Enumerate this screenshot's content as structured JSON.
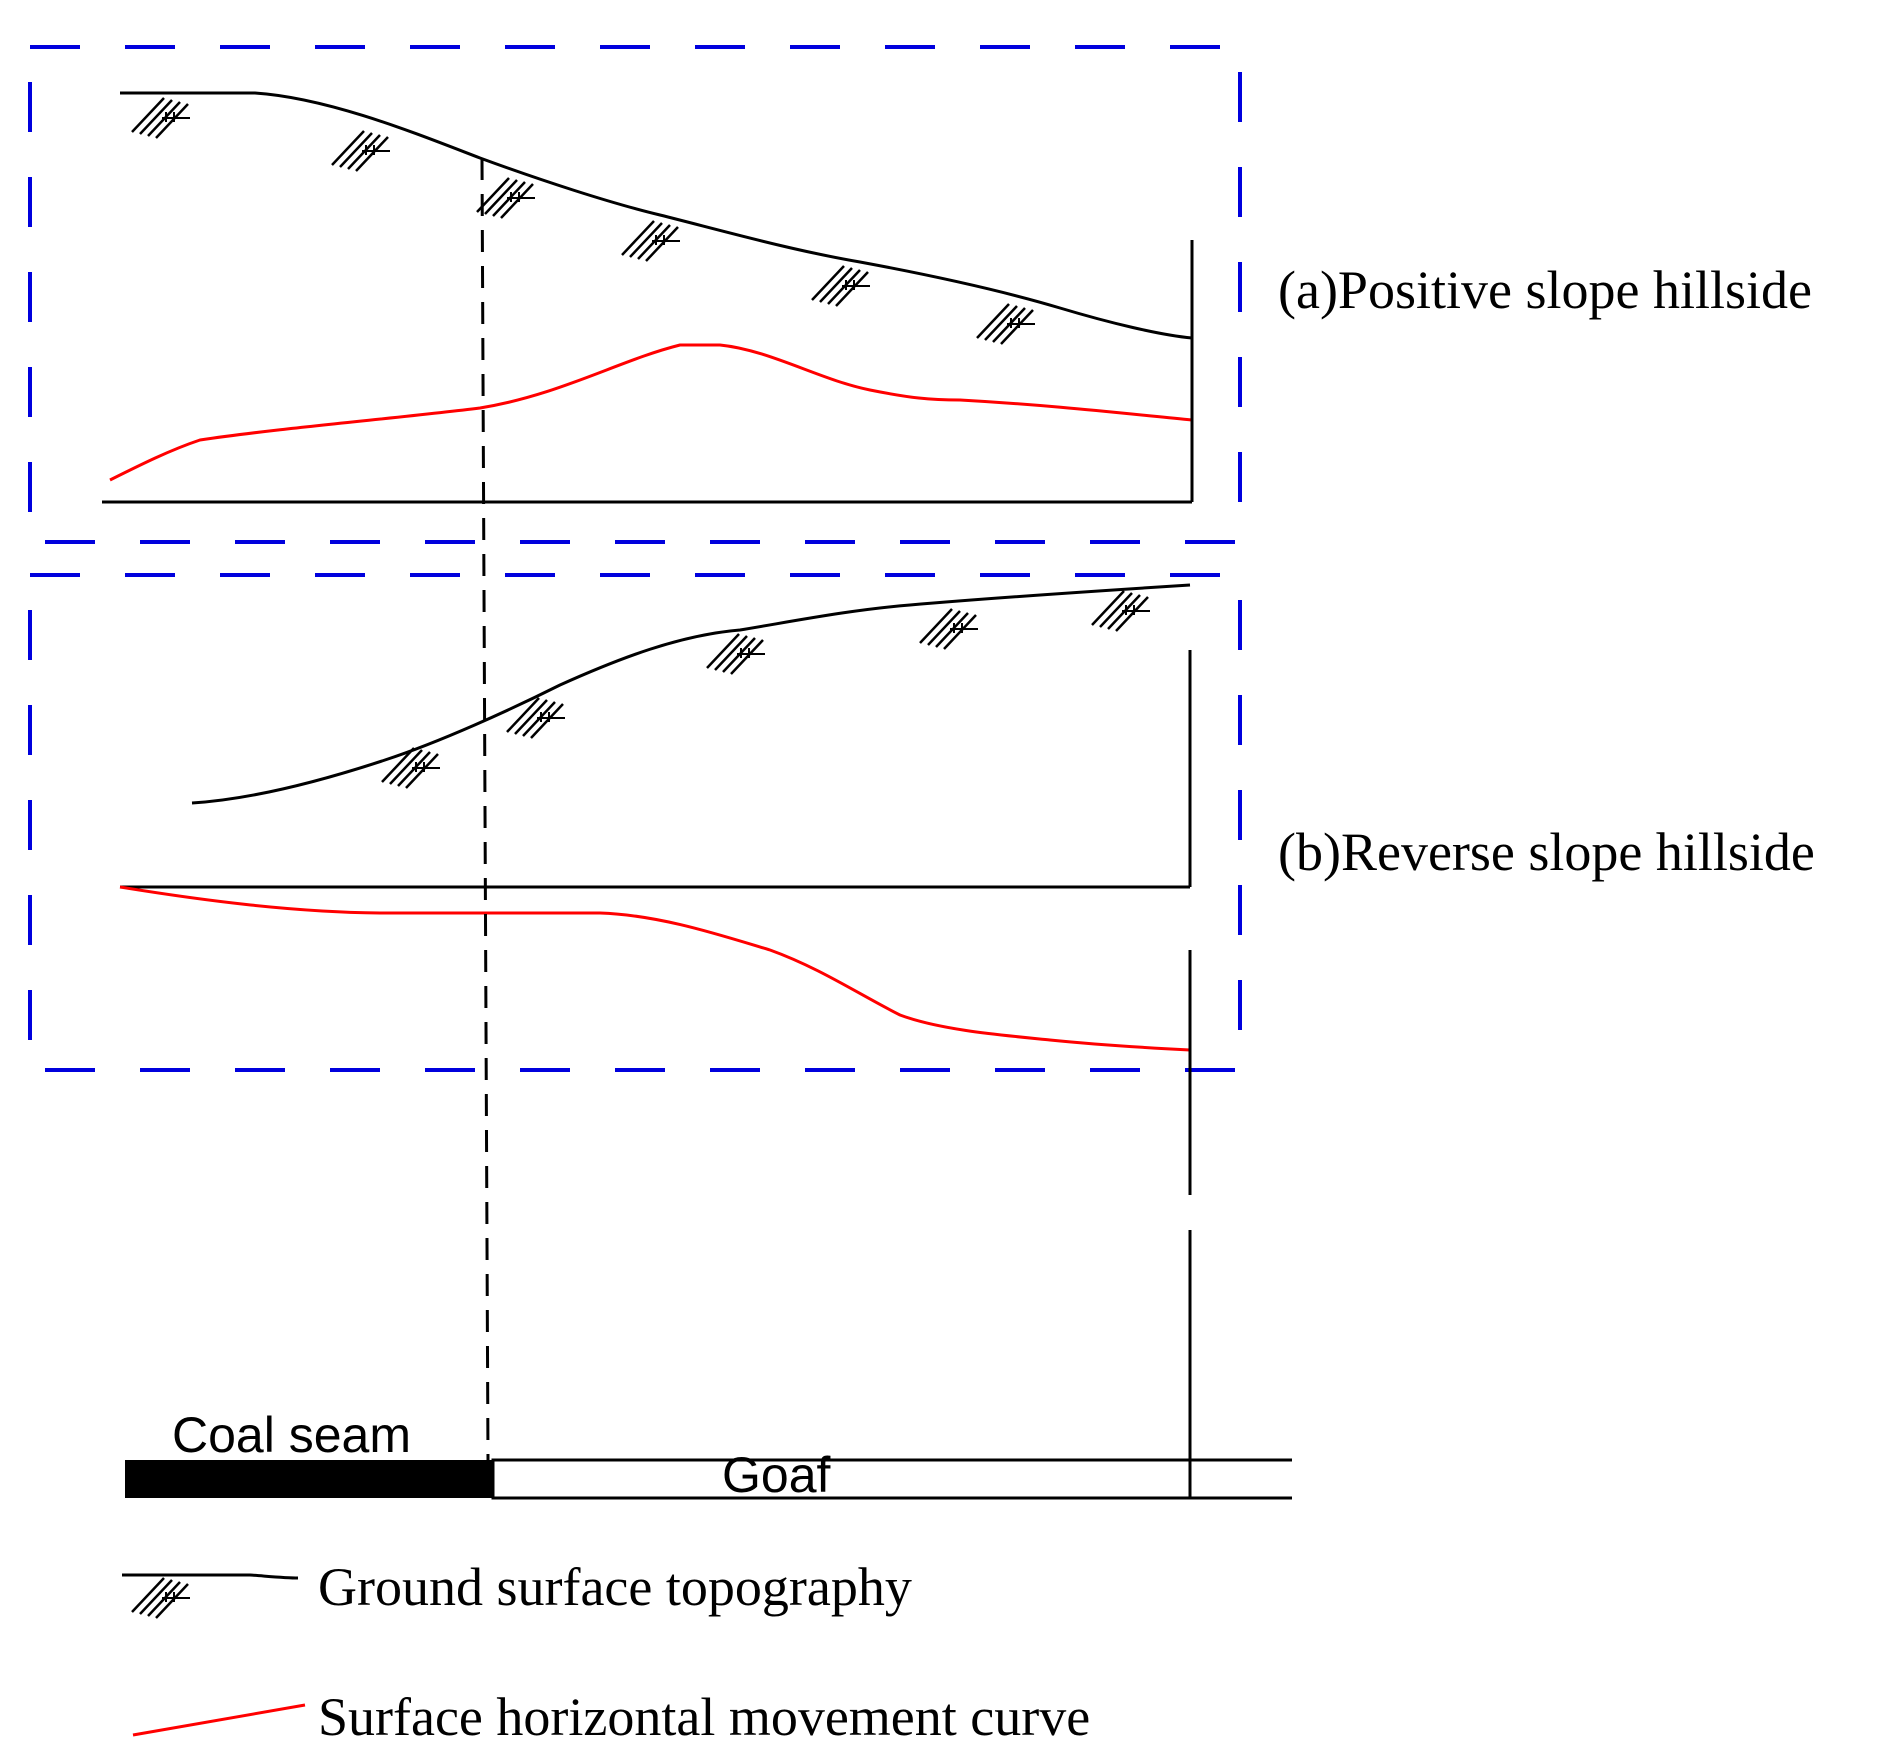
{
  "panels": {
    "a": {
      "label": "(a)Positive slope hillside"
    },
    "b": {
      "label": "(b)Reverse slope hillside"
    }
  },
  "strata": {
    "coal_seam_label": "Coal seam",
    "goaf_label": "Goaf"
  },
  "legend": {
    "ground_label": "Ground surface topography",
    "movement_label": "Surface horizontal movement curve"
  },
  "colors": {
    "frame": "#0000dd",
    "movement_curve": "#ff0000",
    "ground_line": "#000000",
    "coal_seam_fill": "#000000"
  }
}
